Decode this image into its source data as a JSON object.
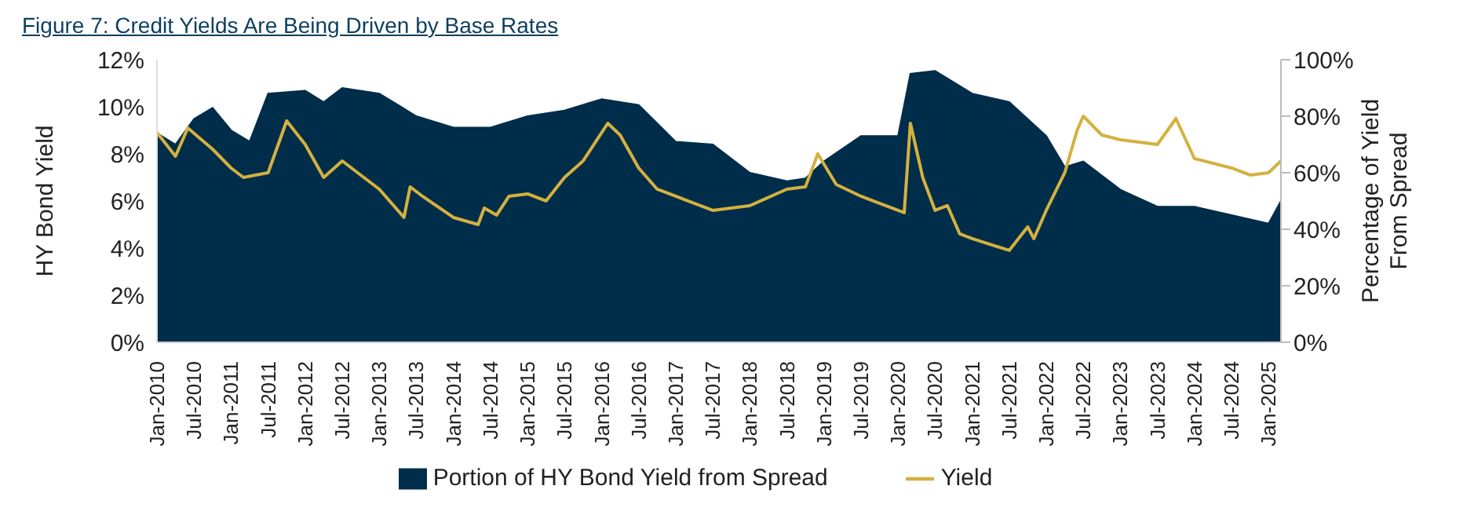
{
  "chart_data": {
    "type": "area",
    "title": "Figure 7: Credit Yields Are Being Driven by Base Rates",
    "ylabel": "HY Bond Yield",
    "y2label": "Percentage of Yield From Spread",
    "legend": "bottom",
    "marker": "none",
    "line_style": "solid",
    "xlim": [
      "2010-01",
      "2025-03"
    ],
    "xticks": [
      {
        "value": "2010-01",
        "label": "Jan-2010"
      },
      {
        "value": "2010-07",
        "label": "Jul-2010"
      },
      {
        "value": "2011-01",
        "label": "Jan-2011"
      },
      {
        "value": "2011-07",
        "label": "Jul-2011"
      },
      {
        "value": "2012-01",
        "label": "Jan-2012"
      },
      {
        "value": "2012-07",
        "label": "Jul-2012"
      },
      {
        "value": "2013-01",
        "label": "Jan-2013"
      },
      {
        "value": "2013-07",
        "label": "Jul-2013"
      },
      {
        "value": "2014-01",
        "label": "Jan-2014"
      },
      {
        "value": "2014-07",
        "label": "Jul-2014"
      },
      {
        "value": "2015-01",
        "label": "Jan-2015"
      },
      {
        "value": "2015-07",
        "label": "Jul-2015"
      },
      {
        "value": "2016-01",
        "label": "Jan-2016"
      },
      {
        "value": "2016-07",
        "label": "Jul-2016"
      },
      {
        "value": "2017-01",
        "label": "Jan-2017"
      },
      {
        "value": "2017-07",
        "label": "Jul-2017"
      },
      {
        "value": "2018-01",
        "label": "Jan-2018"
      },
      {
        "value": "2018-07",
        "label": "Jul-2018"
      },
      {
        "value": "2019-01",
        "label": "Jan-2019"
      },
      {
        "value": "2019-07",
        "label": "Jul-2019"
      },
      {
        "value": "2020-01",
        "label": "Jan-2020"
      },
      {
        "value": "2020-07",
        "label": "Jul-2020"
      },
      {
        "value": "2021-01",
        "label": "Jan-2021"
      },
      {
        "value": "2021-07",
        "label": "Jul-2021"
      },
      {
        "value": "2022-01",
        "label": "Jan-2022"
      },
      {
        "value": "2022-07",
        "label": "Jul-2022"
      },
      {
        "value": "2023-01",
        "label": "Jan-2023"
      },
      {
        "value": "2023-07",
        "label": "Jul-2023"
      },
      {
        "value": "2024-01",
        "label": "Jan-2024"
      },
      {
        "value": "2024-07",
        "label": "Jul-2024"
      },
      {
        "value": "2025-01",
        "label": "Jan-2025"
      }
    ],
    "ylim": [
      0,
      12
    ],
    "yticks": [
      {
        "value": 0,
        "label": "0%"
      },
      {
        "value": 2,
        "label": "2%"
      },
      {
        "value": 4,
        "label": "4%"
      },
      {
        "value": 6,
        "label": "6%"
      },
      {
        "value": 8,
        "label": "8%"
      },
      {
        "value": 10,
        "label": "10%"
      },
      {
        "value": 12,
        "label": "12%"
      }
    ],
    "y2lim": [
      0,
      100
    ],
    "y2ticks": [
      {
        "value": 0,
        "label": "0%"
      },
      {
        "value": 20,
        "label": "20%"
      },
      {
        "value": 40,
        "label": "40%"
      },
      {
        "value": 60,
        "label": "60%"
      },
      {
        "value": 80,
        "label": "80%"
      },
      {
        "value": 100,
        "label": "100%"
      }
    ],
    "series": [
      {
        "name": "Portion of HY Bond Yield from Spread",
        "axis": "y2",
        "color": "#002d4a",
        "x": [
          "2010-01",
          "2010-04",
          "2010-07",
          "2010-10",
          "2011-01",
          "2011-04",
          "2011-07",
          "2012-01",
          "2012-04",
          "2012-07",
          "2013-01",
          "2013-07",
          "2014-01",
          "2014-07",
          "2015-01",
          "2015-07",
          "2016-01",
          "2016-07",
          "2017-01",
          "2017-07",
          "2018-01",
          "2018-07",
          "2018-10",
          "2019-01",
          "2019-07",
          "2020-01",
          "2020-03",
          "2020-07",
          "2021-01",
          "2021-07",
          "2022-01",
          "2022-04",
          "2022-07",
          "2023-01",
          "2023-07",
          "2024-01",
          "2024-07",
          "2025-01",
          "2025-03"
        ],
        "values": [
          74,
          70,
          79,
          83,
          75,
          71,
          88,
          89,
          85,
          90,
          88,
          80,
          76,
          76,
          80,
          82,
          86,
          84,
          71,
          70,
          60,
          57,
          58,
          64,
          73,
          73,
          95,
          96,
          88,
          85,
          73,
          62,
          64,
          54,
          48,
          48,
          45,
          42,
          50
        ]
      },
      {
        "name": "Yield",
        "type": "line",
        "axis": "y",
        "color": "#d4b13f",
        "x": [
          "2010-01",
          "2010-04",
          "2010-06",
          "2010-10",
          "2011-01",
          "2011-03",
          "2011-07",
          "2011-10",
          "2012-01",
          "2012-04",
          "2012-07",
          "2013-01",
          "2013-05",
          "2013-06",
          "2013-08",
          "2014-01",
          "2014-05",
          "2014-06",
          "2014-08",
          "2014-10",
          "2015-01",
          "2015-04",
          "2015-07",
          "2015-10",
          "2016-02",
          "2016-04",
          "2016-07",
          "2016-10",
          "2017-01",
          "2017-07",
          "2018-01",
          "2018-07",
          "2018-10",
          "2018-12",
          "2019-03",
          "2019-07",
          "2020-02",
          "2020-03",
          "2020-05",
          "2020-07",
          "2020-09",
          "2020-11",
          "2021-01",
          "2021-07",
          "2021-10",
          "2021-11",
          "2022-01",
          "2022-04",
          "2022-06",
          "2022-07",
          "2022-10",
          "2023-01",
          "2023-07",
          "2023-10",
          "2024-01",
          "2024-07",
          "2024-10",
          "2025-01",
          "2025-03"
        ],
        "values": [
          8.9,
          7.9,
          9.1,
          8.2,
          7.4,
          7.0,
          7.2,
          9.4,
          8.4,
          7.0,
          7.7,
          6.5,
          5.3,
          6.6,
          6.2,
          5.3,
          5.0,
          5.7,
          5.4,
          6.2,
          6.3,
          6.0,
          7.0,
          7.7,
          9.3,
          8.8,
          7.4,
          6.5,
          6.2,
          5.6,
          5.8,
          6.5,
          6.6,
          8.0,
          6.7,
          6.2,
          5.5,
          9.3,
          7.0,
          5.6,
          5.8,
          4.6,
          4.4,
          3.9,
          4.9,
          4.4,
          5.6,
          7.2,
          9.0,
          9.6,
          8.8,
          8.6,
          8.4,
          9.5,
          7.8,
          7.4,
          7.1,
          7.2,
          7.7
        ]
      }
    ]
  }
}
